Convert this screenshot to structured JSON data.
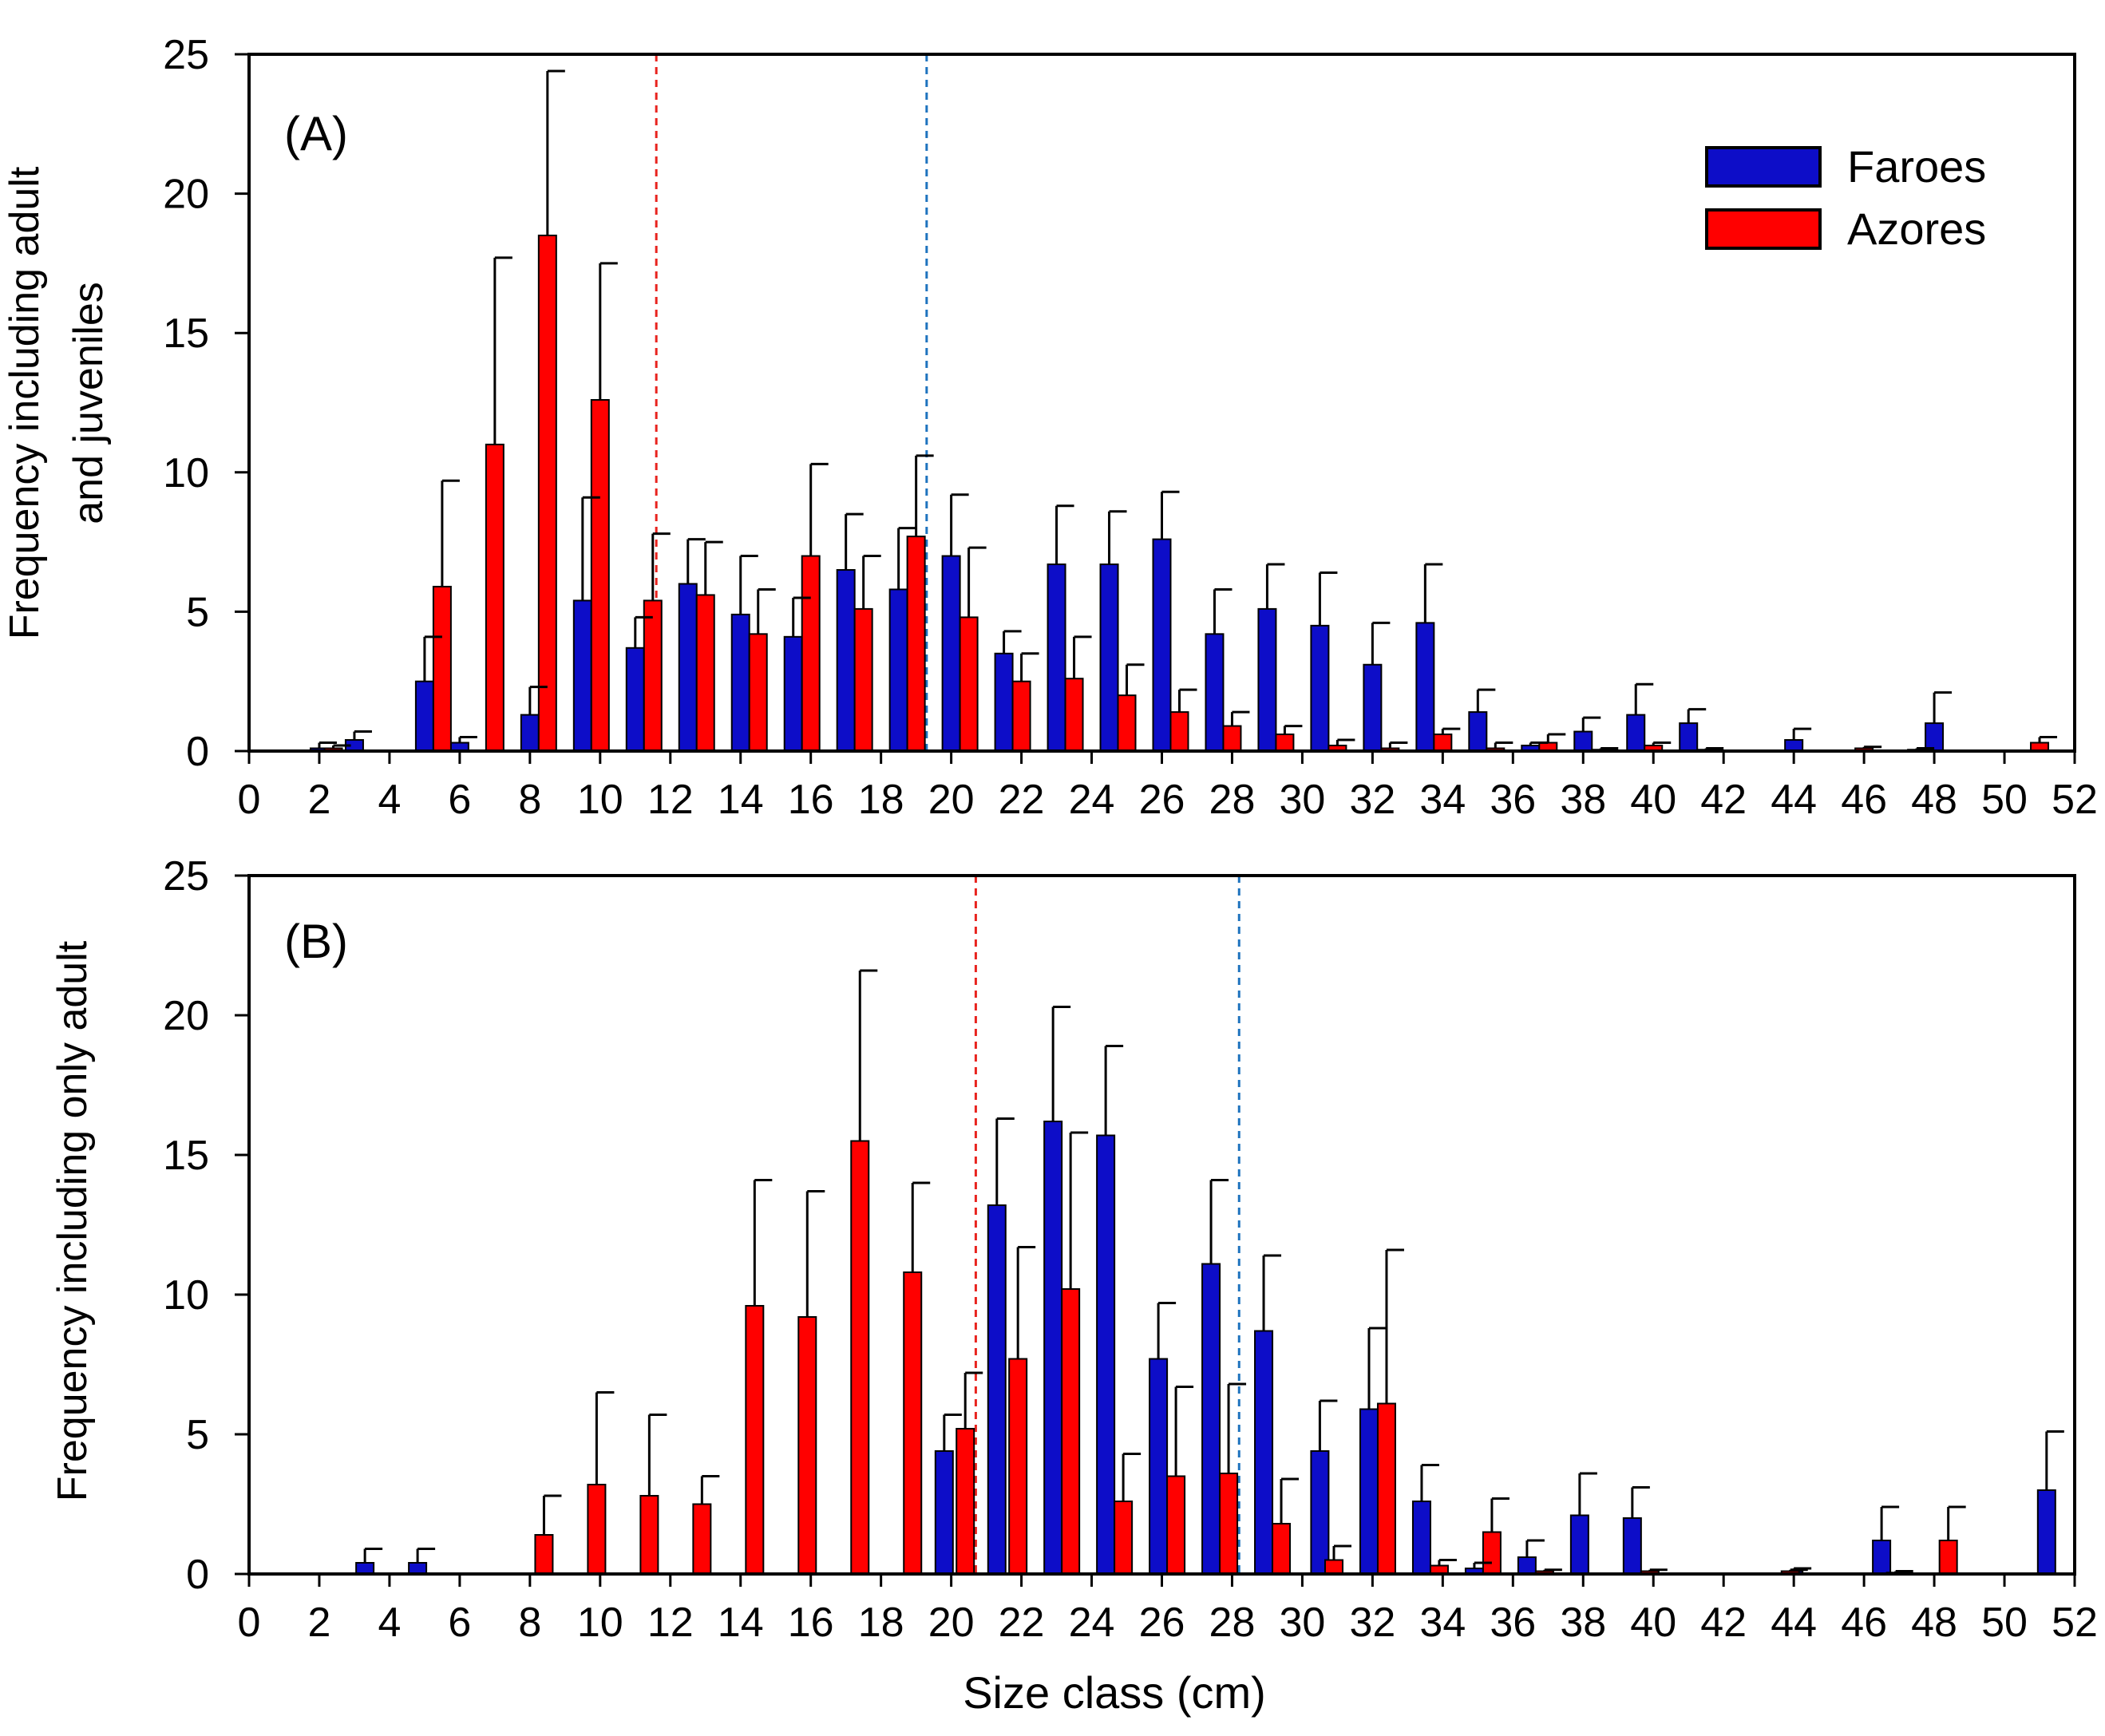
{
  "chart_data": [
    {
      "type": "bar",
      "panel_label": "(A)",
      "ylabel_lines": [
        "Frequency including adult",
        "and juveniles"
      ],
      "xlabel": "",
      "xlim": [
        0,
        52
      ],
      "ylim": [
        0,
        25
      ],
      "x_ticks": [
        "0",
        "2",
        "4",
        "6",
        "8",
        "10",
        "12",
        "14",
        "16",
        "18",
        "20",
        "22",
        "24",
        "26",
        "28",
        "30",
        "32",
        "34",
        "36",
        "38",
        "40",
        "42",
        "44",
        "46",
        "48",
        "50",
        "52"
      ],
      "y_ticks": [
        "0",
        "5",
        "10",
        "15",
        "20",
        "25"
      ],
      "legend": {
        "position": "top-right",
        "entries": [
          "Faroes",
          "Azores"
        ]
      },
      "vlines": [
        {
          "x": 11.6,
          "color": "#e8231e",
          "style": "dashed"
        },
        {
          "x": 19.3,
          "color": "#1e73be",
          "style": "dashed"
        }
      ],
      "series": [
        {
          "name": "Faroes",
          "color": "#0d0dc8",
          "points": [
            [
              2,
              0.1,
              0.2
            ],
            [
              3,
              0.4,
              0.3
            ],
            [
              5,
              2.5,
              1.6
            ],
            [
              6,
              0.3,
              0.2
            ],
            [
              8,
              1.3,
              1.0
            ],
            [
              9.5,
              5.4,
              3.7
            ],
            [
              11,
              3.7,
              1.1
            ],
            [
              12.5,
              6.0,
              1.6
            ],
            [
              14,
              4.9,
              2.1
            ],
            [
              15.5,
              4.1,
              1.4
            ],
            [
              17,
              6.5,
              2.0
            ],
            [
              18.5,
              5.8,
              2.2
            ],
            [
              20,
              7.0,
              2.2
            ],
            [
              21.5,
              3.5,
              0.8
            ],
            [
              23,
              6.7,
              2.1
            ],
            [
              24.5,
              6.7,
              1.9
            ],
            [
              26,
              7.6,
              1.7
            ],
            [
              27.5,
              4.2,
              1.6
            ],
            [
              29,
              5.1,
              1.6
            ],
            [
              30.5,
              4.5,
              1.9
            ],
            [
              32,
              3.1,
              1.5
            ],
            [
              33.5,
              4.6,
              2.1
            ],
            [
              35,
              1.4,
              0.8
            ],
            [
              36.5,
              0.2,
              0.1
            ],
            [
              38,
              0.7,
              0.5
            ],
            [
              39.5,
              1.3,
              1.1
            ],
            [
              41,
              1.0,
              0.5
            ],
            [
              44,
              0.4,
              0.4
            ],
            [
              48,
              1.0,
              1.1
            ]
          ]
        },
        {
          "name": "Azores",
          "color": "#ff0000",
          "points": [
            [
              2.4,
              0.1,
              0.1
            ],
            [
              5.5,
              5.9,
              3.8
            ],
            [
              7,
              11.0,
              6.7
            ],
            [
              8.5,
              18.5,
              5.9
            ],
            [
              10,
              12.6,
              4.9
            ],
            [
              11.5,
              5.4,
              2.4
            ],
            [
              13,
              5.6,
              1.9
            ],
            [
              14.5,
              4.2,
              1.6
            ],
            [
              16,
              7.0,
              3.3
            ],
            [
              17.5,
              5.1,
              1.9
            ],
            [
              19,
              7.7,
              2.9
            ],
            [
              20.5,
              4.8,
              2.5
            ],
            [
              22,
              2.5,
              1.0
            ],
            [
              23.5,
              2.6,
              1.5
            ],
            [
              25,
              2.0,
              1.1
            ],
            [
              26.5,
              1.4,
              0.8
            ],
            [
              28,
              0.9,
              0.5
            ],
            [
              29.5,
              0.6,
              0.3
            ],
            [
              31,
              0.2,
              0.2
            ],
            [
              32.5,
              0.1,
              0.2
            ],
            [
              34,
              0.6,
              0.2
            ],
            [
              35.5,
              0.1,
              0.2
            ],
            [
              37,
              0.3,
              0.3
            ],
            [
              38.5,
              0.05,
              0.05
            ],
            [
              40,
              0.2,
              0.1
            ],
            [
              41.5,
              0.05,
              0.05
            ],
            [
              46,
              0.1,
              0.05
            ],
            [
              47.5,
              0.05,
              0.05
            ],
            [
              51,
              0.3,
              0.2
            ]
          ]
        }
      ]
    },
    {
      "type": "bar",
      "panel_label": "(B)",
      "ylabel_lines": [
        "Frequency including only adult"
      ],
      "xlabel": "Size class (cm)",
      "xlim": [
        0,
        52
      ],
      "ylim": [
        0,
        25
      ],
      "x_ticks": [
        "0",
        "2",
        "4",
        "6",
        "8",
        "10",
        "12",
        "14",
        "16",
        "18",
        "20",
        "22",
        "24",
        "26",
        "28",
        "30",
        "32",
        "34",
        "36",
        "38",
        "40",
        "42",
        "44",
        "46",
        "48",
        "50",
        "52"
      ],
      "y_ticks": [
        "0",
        "5",
        "10",
        "15",
        "20",
        "25"
      ],
      "vlines": [
        {
          "x": 20.7,
          "color": "#e8231e",
          "style": "dashed"
        },
        {
          "x": 28.2,
          "color": "#1e73be",
          "style": "dashed"
        }
      ],
      "series": [
        {
          "name": "Faroes",
          "color": "#0d0dc8",
          "points": [
            [
              3.3,
              0.4,
              0.5
            ],
            [
              4.8,
              0.4,
              0.5
            ],
            [
              19.8,
              4.4,
              1.3
            ],
            [
              21.3,
              13.2,
              3.1
            ],
            [
              22.9,
              16.2,
              4.1
            ],
            [
              24.4,
              15.7,
              3.2
            ],
            [
              25.9,
              7.7,
              2.0
            ],
            [
              27.4,
              11.1,
              3.0
            ],
            [
              28.9,
              8.7,
              2.7
            ],
            [
              30.5,
              4.4,
              1.8
            ],
            [
              31.9,
              5.9,
              2.9
            ],
            [
              33.4,
              2.6,
              1.3
            ],
            [
              34.9,
              0.2,
              0.2
            ],
            [
              36.4,
              0.6,
              0.6
            ],
            [
              37.9,
              2.1,
              1.5
            ],
            [
              39.4,
              2.0,
              1.1
            ],
            [
              44.0,
              0.1,
              0.1
            ],
            [
              46.5,
              1.2,
              1.2
            ],
            [
              51.2,
              3.0,
              2.1
            ]
          ]
        },
        {
          "name": "Azores",
          "color": "#ff0000",
          "points": [
            [
              8.4,
              1.4,
              1.4
            ],
            [
              9.9,
              3.2,
              3.3
            ],
            [
              11.4,
              2.8,
              2.9
            ],
            [
              12.9,
              2.5,
              1.0
            ],
            [
              14.4,
              9.6,
              4.5
            ],
            [
              15.9,
              9.2,
              4.5
            ],
            [
              17.4,
              15.5,
              6.1
            ],
            [
              18.9,
              10.8,
              3.2
            ],
            [
              20.4,
              5.2,
              2.0
            ],
            [
              21.9,
              7.7,
              4.0
            ],
            [
              23.4,
              10.2,
              5.6
            ],
            [
              24.9,
              2.6,
              1.7
            ],
            [
              26.4,
              3.5,
              3.2
            ],
            [
              27.9,
              3.6,
              3.2
            ],
            [
              29.4,
              1.8,
              1.6
            ],
            [
              30.9,
              0.5,
              0.5
            ],
            [
              32.4,
              6.1,
              5.5
            ],
            [
              33.9,
              0.3,
              0.2
            ],
            [
              35.4,
              1.5,
              1.2
            ],
            [
              36.9,
              0.1,
              0.05
            ],
            [
              39.9,
              0.1,
              0.05
            ],
            [
              43.9,
              0.1,
              0.05
            ],
            [
              46.9,
              0.05,
              0.05
            ],
            [
              48.4,
              1.2,
              1.2
            ]
          ]
        }
      ]
    }
  ]
}
